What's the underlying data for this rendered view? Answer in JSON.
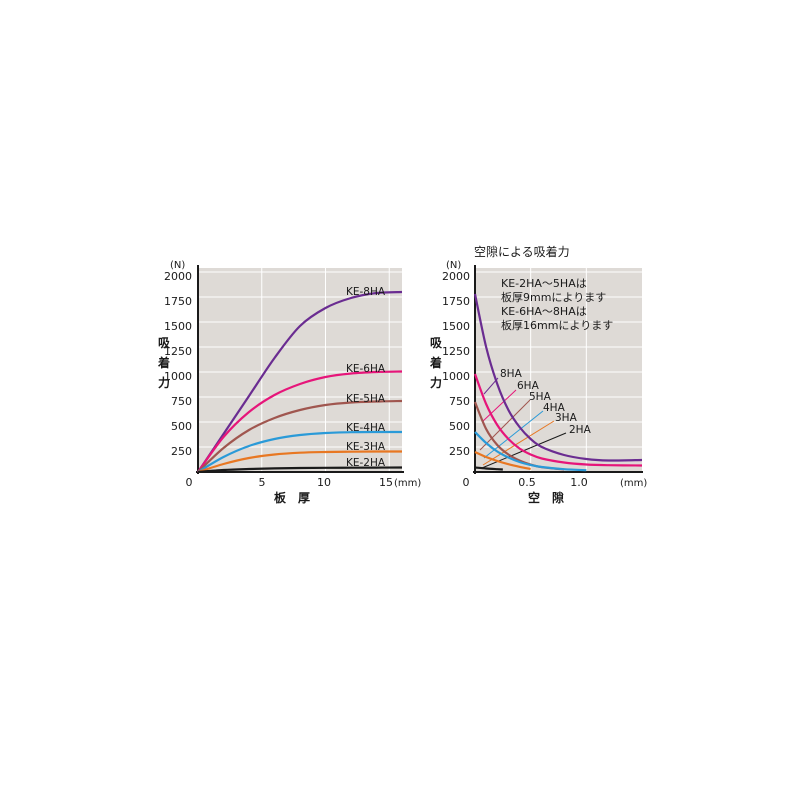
{
  "chart_data": [
    {
      "type": "line",
      "unit_y": "(N)",
      "ylabel": "吸\n着\n力",
      "xlabel": "板　厚",
      "x_unit": "(mm)",
      "xlim": [
        0,
        16
      ],
      "ylim": [
        0,
        2000
      ],
      "grid": true,
      "y_ticks": [
        "250",
        "500",
        "750",
        "1000",
        "1250",
        "1500",
        "1750",
        "2000"
      ],
      "x_ticks": [
        "0",
        "5",
        "10",
        "15"
      ],
      "series": [
        {
          "name": "KE-8HA",
          "color": "#6a2c91",
          "x": [
            0,
            2,
            4,
            6,
            8,
            10,
            12,
            14,
            16
          ],
          "y": [
            0,
            380,
            760,
            1140,
            1460,
            1640,
            1740,
            1790,
            1800
          ]
        },
        {
          "name": "KE-6HA",
          "color": "#e6157a",
          "x": [
            0,
            2,
            4,
            6,
            8,
            10,
            12,
            14,
            16
          ],
          "y": [
            0,
            350,
            600,
            770,
            880,
            950,
            985,
            1000,
            1005
          ]
        },
        {
          "name": "KE-5HA",
          "color": "#a0564f",
          "x": [
            0,
            2,
            4,
            6,
            8,
            10,
            12,
            14,
            16
          ],
          "y": [
            0,
            240,
            420,
            540,
            620,
            670,
            695,
            705,
            710
          ]
        },
        {
          "name": "KE-4HA",
          "color": "#2a9ad8",
          "x": [
            0,
            2,
            4,
            6,
            8,
            10,
            12,
            14,
            16
          ],
          "y": [
            0,
            150,
            260,
            330,
            370,
            390,
            398,
            400,
            400
          ]
        },
        {
          "name": "KE-3HA",
          "color": "#e87722",
          "x": [
            0,
            2,
            4,
            6,
            8,
            10,
            12,
            14,
            16
          ],
          "y": [
            0,
            80,
            140,
            175,
            193,
            200,
            203,
            205,
            205
          ]
        },
        {
          "name": "KE-2HA",
          "color": "#1a1a1a",
          "x": [
            0,
            2,
            4,
            6,
            8,
            10,
            12,
            14,
            16
          ],
          "y": [
            0,
            20,
            30,
            36,
            40,
            42,
            43,
            44,
            45
          ]
        }
      ]
    },
    {
      "type": "line",
      "title": "空隙による吸着力",
      "unit_y": "(N)",
      "ylabel": "吸\n着\n力",
      "xlabel": "空　隙",
      "x_unit": "(mm)",
      "xlim": [
        0,
        1.5
      ],
      "ylim": [
        0,
        2000
      ],
      "grid": true,
      "y_ticks": [
        "250",
        "500",
        "750",
        "1000",
        "1250",
        "1500",
        "1750",
        "2000"
      ],
      "x_ticks": [
        "0",
        "0.5",
        "1.0"
      ],
      "note_lines": [
        "KE-2HA～5HAは",
        "板厚9mmによります",
        "KE-6HA～8HAは",
        "板厚16mmによります"
      ],
      "series": [
        {
          "name": "8HA",
          "color": "#6a2c91",
          "x": [
            0,
            0.1,
            0.2,
            0.3,
            0.4,
            0.5,
            0.6,
            0.8,
            1.0,
            1.2,
            1.5
          ],
          "y": [
            1780,
            1250,
            880,
            620,
            450,
            330,
            250,
            170,
            130,
            115,
            120
          ]
        },
        {
          "name": "6HA",
          "color": "#e6157a",
          "x": [
            0,
            0.1,
            0.2,
            0.3,
            0.4,
            0.5,
            0.6,
            0.8,
            1.0,
            1.2,
            1.5
          ],
          "y": [
            980,
            680,
            470,
            330,
            235,
            175,
            135,
            95,
            75,
            68,
            65
          ]
        },
        {
          "name": "5HA",
          "color": "#a0564f",
          "x": [
            0,
            0.1,
            0.2,
            0.3,
            0.4,
            0.5,
            0.6,
            0.8
          ],
          "y": [
            700,
            430,
            270,
            175,
            115,
            75,
            48,
            25
          ]
        },
        {
          "name": "4HA",
          "color": "#2a9ad8",
          "x": [
            0,
            0.1,
            0.2,
            0.3,
            0.4,
            0.5,
            0.6,
            0.8,
            1.0
          ],
          "y": [
            400,
            290,
            205,
            145,
            100,
            70,
            50,
            28,
            18
          ]
        },
        {
          "name": "3HA",
          "color": "#e87722",
          "x": [
            0,
            0.1,
            0.2,
            0.3,
            0.4,
            0.5
          ],
          "y": [
            200,
            150,
            110,
            78,
            52,
            30
          ]
        },
        {
          "name": "2HA",
          "color": "#1a1a1a",
          "x": [
            0,
            0.1,
            0.2,
            0.25
          ],
          "y": [
            45,
            35,
            28,
            25
          ]
        }
      ]
    }
  ]
}
